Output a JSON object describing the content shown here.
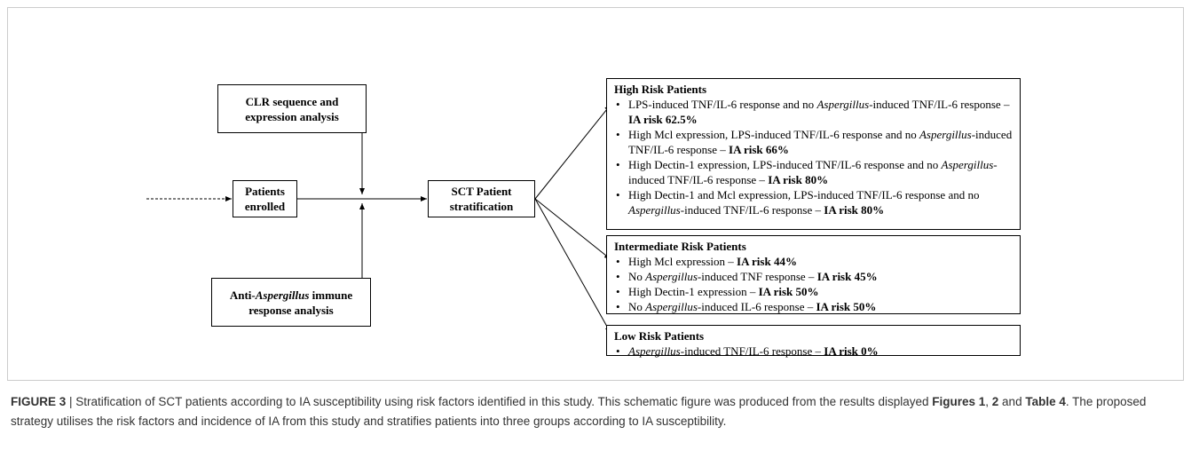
{
  "nodes": [
    {
      "segments": [
        {
          "text": "CLR sequence and expression analysis"
        }
      ]
    },
    {
      "segments": [
        {
          "text": "Patients enrolled"
        }
      ]
    },
    {
      "segments": [
        {
          "text": "Anti-"
        },
        {
          "text": "Aspergillus",
          "style": "italic"
        },
        {
          "text": " immune response analysis"
        }
      ]
    },
    {
      "segments": [
        {
          "text": "SCT Patient stratification"
        }
      ]
    }
  ],
  "groups": [
    {
      "title": "High Risk Patients",
      "items": [
        {
          "segments": [
            {
              "text": "LPS-induced TNF/IL-6 response and no "
            },
            {
              "text": "Aspergillus",
              "style": "italic"
            },
            {
              "text": "-induced TNF/IL-6 response – "
            },
            {
              "text": "IA risk 62.5%",
              "style": "bold"
            }
          ]
        },
        {
          "segments": [
            {
              "text": "High Mcl expression, LPS-induced TNF/IL-6 response and no "
            },
            {
              "text": "Aspergillus",
              "style": "italic"
            },
            {
              "text": "-induced TNF/IL-6 response – "
            },
            {
              "text": "IA risk 66%",
              "style": "bold"
            }
          ]
        },
        {
          "segments": [
            {
              "text": "High Dectin-1 expression, LPS-induced TNF/IL-6 response and no "
            },
            {
              "text": "Aspergillus",
              "style": "italic"
            },
            {
              "text": "-induced TNF/IL-6 response – "
            },
            {
              "text": "IA risk 80%",
              "style": "bold"
            }
          ]
        },
        {
          "segments": [
            {
              "text": "High Dectin-1 and Mcl expression, LPS-induced TNF/IL-6 response and no "
            },
            {
              "text": "Aspergillus",
              "style": "italic"
            },
            {
              "text": "-induced TNF/IL-6 response – "
            },
            {
              "text": "IA risk 80%",
              "style": "bold"
            }
          ]
        }
      ]
    },
    {
      "title": "Intermediate Risk Patients",
      "items": [
        {
          "segments": [
            {
              "text": "High Mcl expression – "
            },
            {
              "text": "IA risk 44%",
              "style": "bold"
            }
          ]
        },
        {
          "segments": [
            {
              "text": "No "
            },
            {
              "text": "Aspergillus",
              "style": "italic"
            },
            {
              "text": "-induced TNF response – "
            },
            {
              "text": "IA risk 45%",
              "style": "bold"
            }
          ]
        },
        {
          "segments": [
            {
              "text": "High Dectin-1 expression – "
            },
            {
              "text": "IA risk 50%",
              "style": "bold"
            }
          ]
        },
        {
          "segments": [
            {
              "text": "No "
            },
            {
              "text": "Aspergillus",
              "style": "italic"
            },
            {
              "text": "-induced IL-6 response – "
            },
            {
              "text": "IA risk 50%",
              "style": "bold"
            }
          ]
        }
      ]
    },
    {
      "title": "Low Risk Patients",
      "items": [
        {
          "segments": [
            {
              "text": "Aspergillus",
              "style": "italic"
            },
            {
              "text": "-induced TNF/IL-6 response – "
            },
            {
              "text": "IA risk 0%",
              "style": "bold"
            }
          ]
        }
      ]
    }
  ],
  "caption": {
    "segments": [
      {
        "text": "FIGURE 3",
        "style": "bold"
      },
      {
        "text": " | Stratification of SCT patients according to IA susceptibility using risk factors identified in this study. This schematic figure was produced from the results displayed "
      },
      {
        "text": "Figures 1",
        "style": "bold"
      },
      {
        "text": ", "
      },
      {
        "text": "2",
        "style": "bold"
      },
      {
        "text": " and "
      },
      {
        "text": "Table 4",
        "style": "bold"
      },
      {
        "text": ". The proposed strategy utilises the risk factors and incidence of IA from this study and stratifies patients into three groups according to IA susceptibility."
      }
    ]
  }
}
